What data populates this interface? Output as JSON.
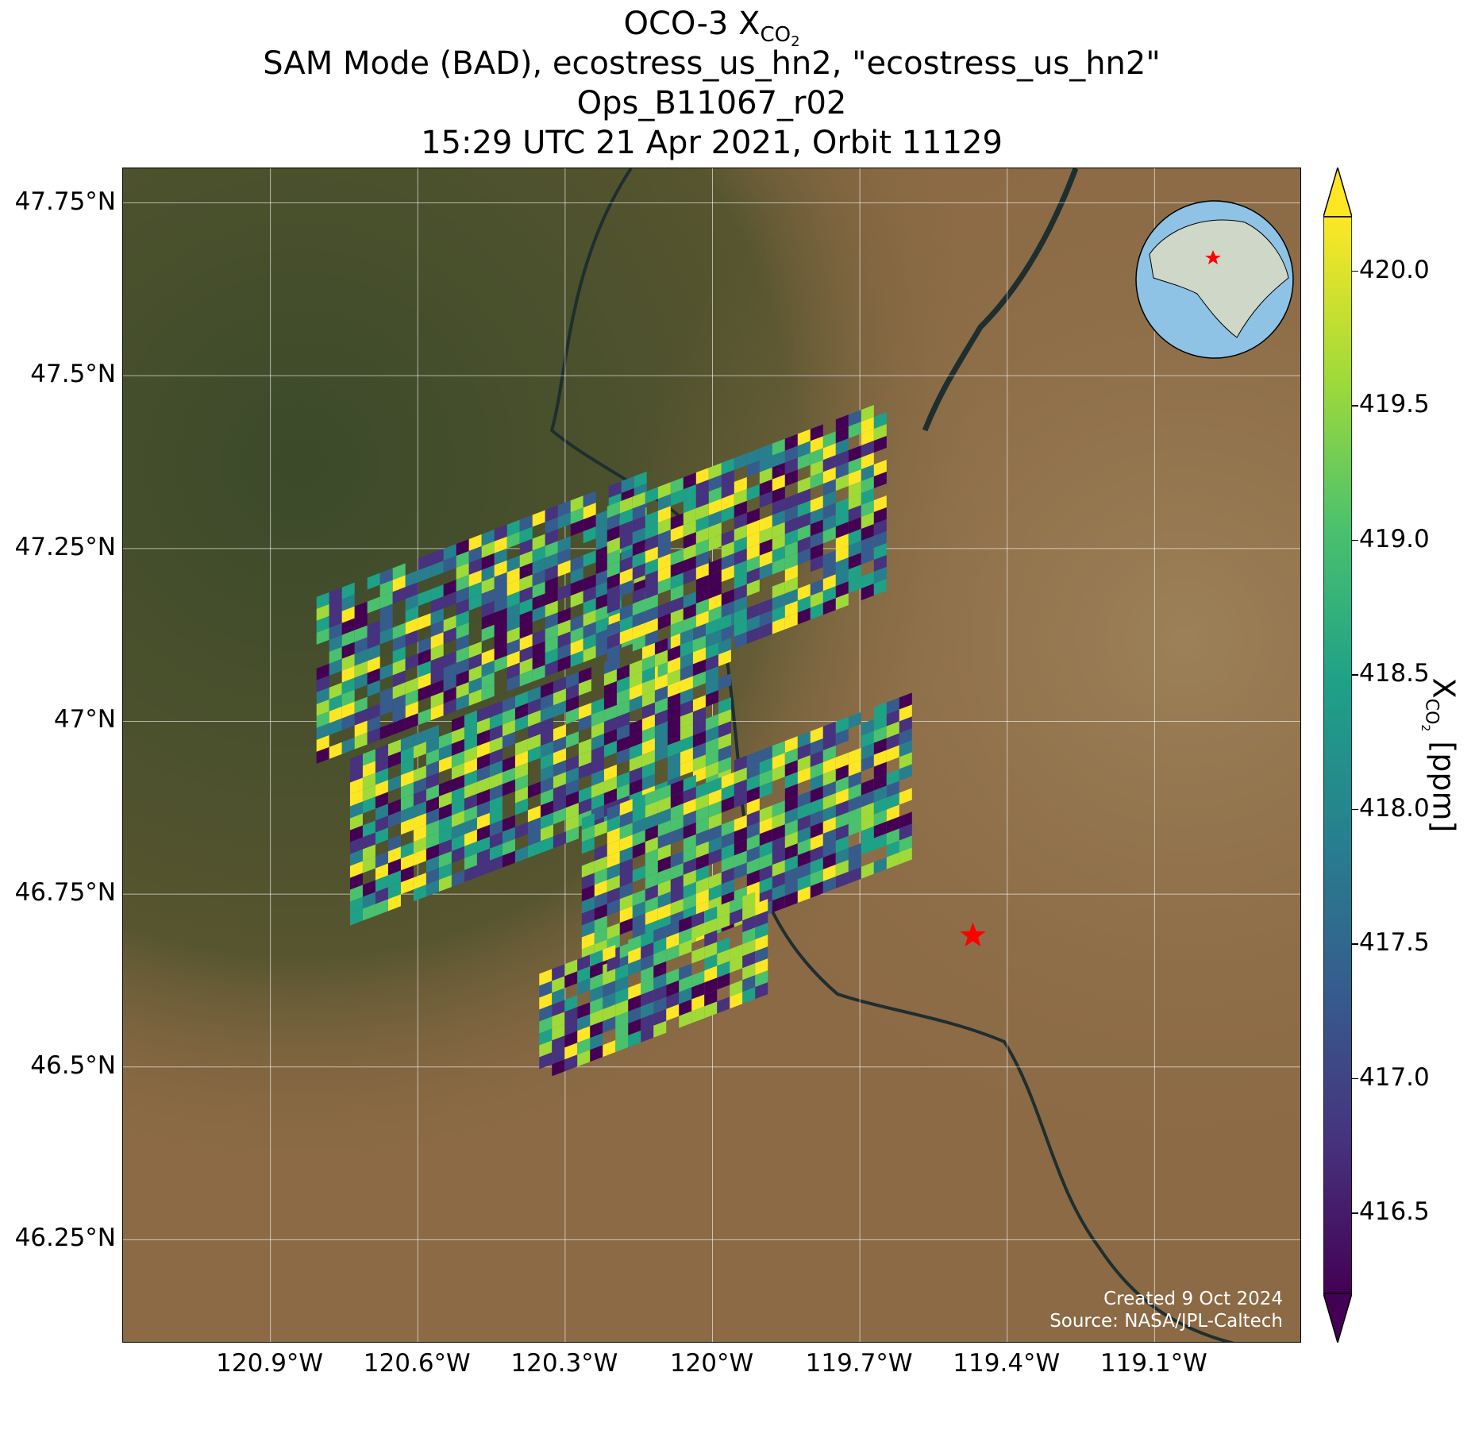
{
  "title": {
    "line1_prefix": "OCO-3 X",
    "line1_sub": "CO",
    "line1_sub2": "2",
    "line2": "SAM Mode (BAD), ecostress_us_hn2, \"ecostress_us_hn2\"",
    "line3": "Ops_B11067_r02",
    "line4": "15:29 UTC 21 Apr 2021, Orbit 11129"
  },
  "axes": {
    "y_ticks": [
      {
        "label": "47.75°N",
        "lat": 47.75
      },
      {
        "label": "47.5°N",
        "lat": 47.5
      },
      {
        "label": "47.25°N",
        "lat": 47.25
      },
      {
        "label": "47°N",
        "lat": 47.0
      },
      {
        "label": "46.75°N",
        "lat": 46.75
      },
      {
        "label": "46.5°N",
        "lat": 46.5
      },
      {
        "label": "46.25°N",
        "lat": 46.25
      }
    ],
    "x_ticks": [
      {
        "label": "120.9°W",
        "lon": -120.9
      },
      {
        "label": "120.6°W",
        "lon": -120.6
      },
      {
        "label": "120.3°W",
        "lon": -120.3
      },
      {
        "label": "120°W",
        "lon": -120.0
      },
      {
        "label": "119.7°W",
        "lon": -119.7
      },
      {
        "label": "119.4°W",
        "lon": -119.4
      },
      {
        "label": "119.1°W",
        "lon": -119.1
      }
    ],
    "lon_range": [
      -121.2,
      -118.8
    ],
    "lat_range": [
      46.1,
      47.8
    ]
  },
  "colorbar": {
    "label_prefix": "X",
    "label_sub": "CO",
    "label_sub2": "2",
    "label_suffix": " [ppm]",
    "range": [
      416.2,
      420.2
    ],
    "extend": "both",
    "colormap": "viridis",
    "ticks": [
      "420.0",
      "419.5",
      "419.0",
      "418.5",
      "418.0",
      "417.5",
      "417.0",
      "416.5"
    ],
    "tick_values": [
      420.0,
      419.5,
      419.0,
      418.5,
      418.0,
      417.5,
      417.0,
      416.5
    ]
  },
  "target_marker": {
    "lon": -119.47,
    "lat": 46.69,
    "color": "#ff0000"
  },
  "credits": {
    "line1": "Created 9 Oct 2024",
    "line2": "Source: NASA/JPL-Caltech"
  },
  "colors": {
    "basemap_desert": "#8b6a45",
    "basemap_forest": "#3f4a2c",
    "river": "#1f2e2e",
    "grid": "#ffffff",
    "marker": "#ff0000",
    "globe_ocean": "#8ec3e6",
    "globe_land": "#cfd8c8"
  }
}
